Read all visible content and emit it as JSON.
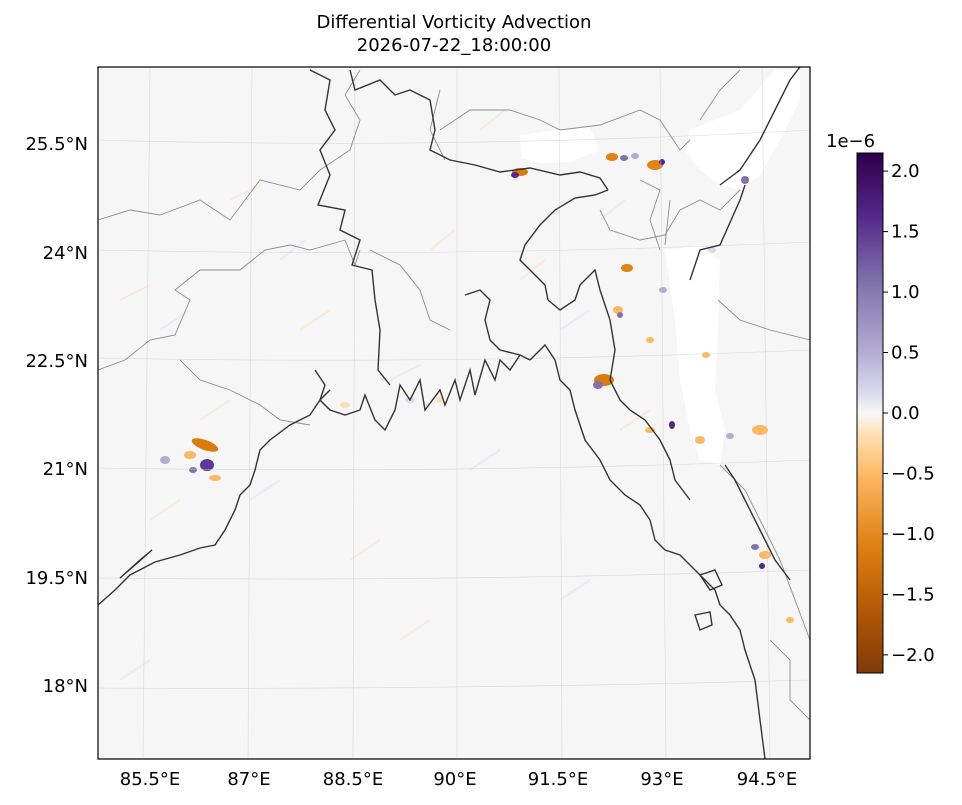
{
  "title": {
    "line1": "Differential Vorticity Advection",
    "line2": "2026-07-22_18:00:00"
  },
  "map": {
    "projection": "lambert-conformal",
    "lat_labels": [
      "25.5°N",
      "24°N",
      "22.5°N",
      "21°N",
      "19.5°N",
      "18°N"
    ],
    "lon_labels": [
      "85.5°E",
      "87°E",
      "88.5°E",
      "90°E",
      "91.5°E",
      "93°E",
      "94.5°E"
    ],
    "features": [
      "coastline",
      "country borders",
      "state borders",
      "gridlines"
    ],
    "field": "differential vorticity advection",
    "notable_features": [
      "white (masked) region over terrain in northeast near 92.5-94.5°E, 22-26°N",
      "strong orange/purple dipole near 86.3°E, 21°N",
      "scattered small-scale features along eastern hills and Arakan coast"
    ]
  },
  "colorbar": {
    "colormap": "PuOr",
    "offset_label": "1e−6",
    "ticks": [
      "2.0",
      "1.5",
      "1.0",
      "0.5",
      "0.0",
      "−0.5",
      "−1.0",
      "−1.5",
      "−2.0"
    ],
    "range": [
      -2.15,
      2.15
    ],
    "top_color": "#2d004b",
    "mid_color": "#f7f7f7",
    "bottom_color": "#7f3b08"
  },
  "chart_data": {
    "type": "heatmap",
    "title": "Differential Vorticity Advection\n2026-07-22_18:00:00",
    "colorbar_ticks": [
      2.0,
      1.5,
      1.0,
      0.5,
      0.0,
      -0.5,
      -1.0,
      -1.5,
      -2.0
    ],
    "colorbar_scale": "1e-6",
    "vmin": -2.15e-06,
    "vmax": 2.15e-06,
    "lat_ticks": [
      25.5,
      24,
      22.5,
      21,
      19.5,
      18
    ],
    "lon_ticks": [
      85.5,
      87,
      88.5,
      90,
      91.5,
      93,
      94.5
    ]
  }
}
